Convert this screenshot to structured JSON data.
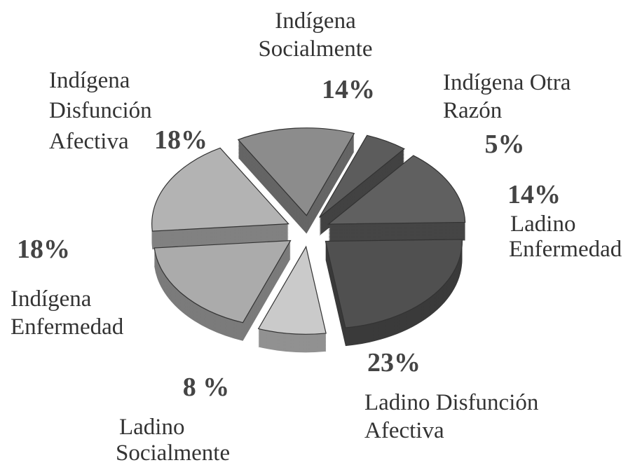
{
  "chart_data": {
    "type": "pie",
    "categories": [
      "Indígena Socialmente",
      "Indígena Otra Razón",
      "Ladino Enfermedad",
      "Ladino Disfunción Afectiva",
      "Ladino Socialmente",
      "Indígena Enfermedad",
      "Indígena Disfunción Afectiva"
    ],
    "values": [
      14,
      5,
      14,
      23,
      8,
      18,
      18
    ],
    "value_labels": [
      "14%",
      "5%",
      "14%",
      "23%",
      "8 %",
      "18%",
      "18%"
    ],
    "colors": [
      "#8c8c8c",
      "#5c5c5c",
      "#606060",
      "#505050",
      "#cacaca",
      "#ababab",
      "#b3b3b3"
    ]
  }
}
